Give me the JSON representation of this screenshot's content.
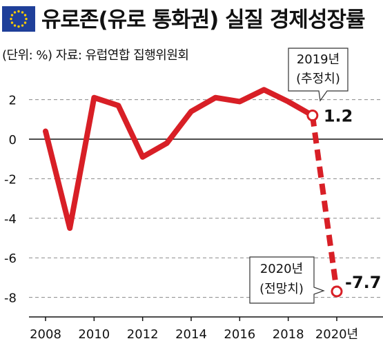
{
  "header": {
    "title": "유로존(유로 통화권) 실질 경제성장률",
    "source": "(단위: %) 자료: 유럽연합 집행위원회"
  },
  "colors": {
    "line": "#d81f26",
    "flag": "#1f3f99",
    "stars": "#ffcc00"
  },
  "icons": {
    "flag": "eu-flag-icon"
  },
  "chart_data": {
    "type": "line",
    "title": "유로존(유로 통화권) 실질 경제성장률",
    "unit": "%",
    "x": [
      2008,
      2009,
      2010,
      2011,
      2012,
      2013,
      2014,
      2015,
      2016,
      2017,
      2018,
      2019,
      2020
    ],
    "series": [
      {
        "values": [
          0.4,
          -4.5,
          2.1,
          1.7,
          -0.9,
          -0.2,
          1.4,
          2.1,
          1.9,
          2.5,
          1.9,
          1.2,
          -7.7
        ]
      }
    ],
    "solid_through": 2019,
    "dashed_segment": [
      2019,
      2020
    ],
    "x_tick_labels": [
      "2008",
      "2010",
      "2012",
      "2014",
      "2016",
      "2018",
      "2020년"
    ],
    "x_ticks": [
      2008,
      2010,
      2012,
      2014,
      2016,
      2018,
      2020
    ],
    "y_tick_labels": [
      "2",
      "0",
      "-2",
      "-4",
      "-6",
      "-8"
    ],
    "y_ticks": [
      2,
      0,
      -2,
      -4,
      -6,
      -8
    ],
    "ylim": [
      -8.5,
      2.5
    ],
    "xlim": [
      2007.5,
      2021.2
    ],
    "grid": true,
    "annotations": [
      {
        "x": 2019,
        "y": 1.2,
        "value_label": "1.2",
        "callout": [
          "2019년",
          "(추정치)"
        ]
      },
      {
        "x": 2020,
        "y": -7.7,
        "value_label": "-7.7",
        "callout": [
          "2020년",
          "(전망치)"
        ]
      }
    ]
  }
}
